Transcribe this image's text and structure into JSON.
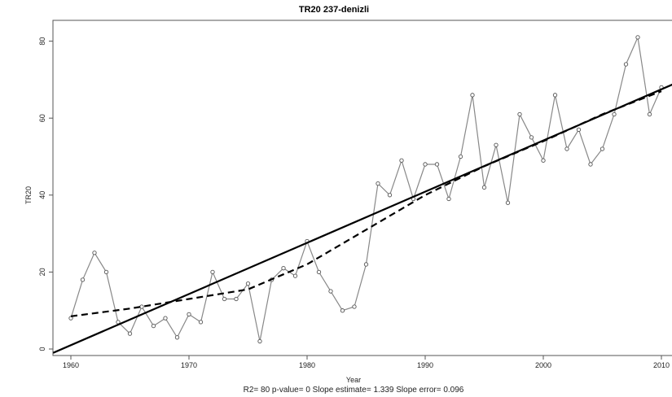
{
  "chart_data": {
    "type": "line",
    "title": "TR20   237-denizli",
    "xlabel": "Year",
    "ylabel": "TR20",
    "subtitle": "R2= 80  p-value= 0  Slope estimate= 1.339  Slope error= 0.096",
    "xlim": [
      1960,
      2011
    ],
    "ylim": [
      0,
      82
    ],
    "xticks": [
      1960,
      1970,
      1980,
      1990,
      2000,
      2010
    ],
    "yticks": [
      0,
      20,
      40,
      60,
      80
    ],
    "grid": false,
    "legend": "none",
    "series": [
      {
        "style": "line-with-circle-markers",
        "color": "#888888",
        "x": [
          1960,
          1961,
          1962,
          1963,
          1964,
          1965,
          1966,
          1967,
          1968,
          1969,
          1970,
          1971,
          1972,
          1973,
          1974,
          1975,
          1976,
          1977,
          1978,
          1979,
          1980,
          1981,
          1982,
          1983,
          1984,
          1985,
          1986,
          1987,
          1988,
          1989,
          1990,
          1991,
          1992,
          1993,
          1994,
          1995,
          1996,
          1997,
          1998,
          1999,
          2000,
          2001,
          2002,
          2003,
          2004,
          2005,
          2006,
          2007,
          2008,
          2009,
          2010
        ],
        "y": [
          8,
          18,
          25,
          20,
          7,
          4,
          11,
          6,
          8,
          3,
          9,
          7,
          20,
          13,
          13,
          17,
          2,
          18,
          21,
          19,
          28,
          20,
          15,
          10,
          11,
          22,
          43,
          40,
          49,
          39,
          48,
          48,
          39,
          50,
          66,
          42,
          53,
          38,
          61,
          55,
          49,
          66,
          52,
          57,
          48,
          52,
          61,
          74,
          81,
          61,
          68
        ]
      },
      {
        "style": "dashed-smooth",
        "color": "#000000",
        "x": [
          1960,
          1965,
          1970,
          1975,
          1980,
          1985,
          1990,
          1995,
          2000,
          2005,
          2010
        ],
        "y": [
          8.5,
          10.5,
          13,
          15.5,
          22,
          31,
          40,
          47.5,
          54,
          61,
          67
        ]
      },
      {
        "style": "solid-regression",
        "color": "#000000",
        "x": [
          1958.5,
          2011.5
        ],
        "y": [
          -1,
          69.5
        ]
      }
    ]
  }
}
